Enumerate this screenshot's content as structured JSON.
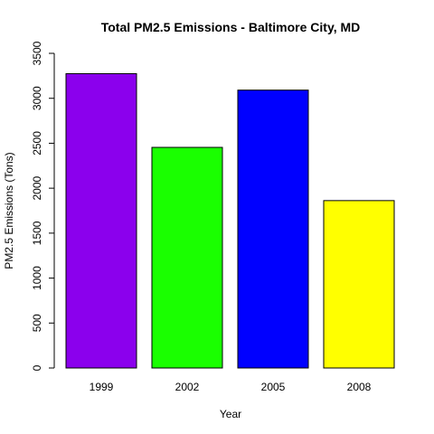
{
  "chart_data": {
    "type": "bar",
    "title": "Total PM2.5 Emissions - Baltimore City, MD",
    "xlabel": "Year",
    "ylabel": "PM2.5 Emissions (Tons)",
    "categories": [
      "1999",
      "2002",
      "2005",
      "2008"
    ],
    "values": [
      3274,
      2454,
      3091,
      1862
    ],
    "colors": [
      "#8b00ed",
      "#1aff00",
      "#0000ff",
      "#ffff00"
    ],
    "ylim": [
      0,
      3500
    ],
    "yticks": [
      0,
      500,
      1000,
      1500,
      2000,
      2500,
      3000,
      3500
    ],
    "ytick_labels": [
      "0",
      "500",
      "1000",
      "1500",
      "2000",
      "2500",
      "3000",
      "3500"
    ],
    "grid": false,
    "legend": "none"
  }
}
